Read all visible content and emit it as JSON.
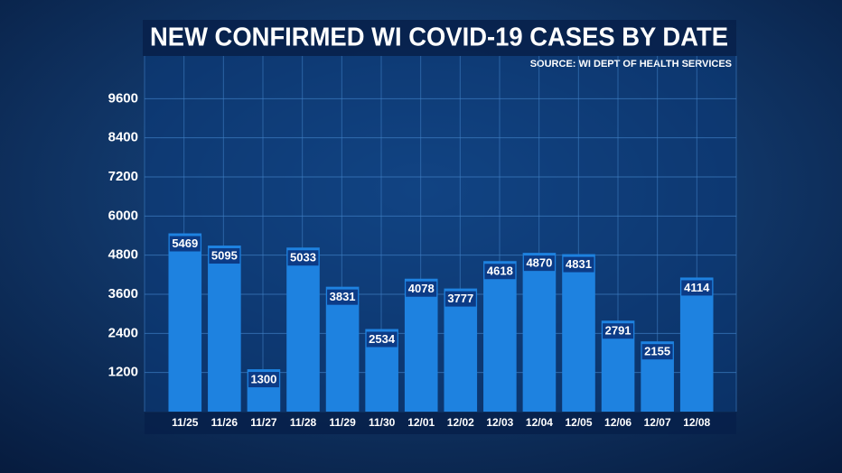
{
  "chart_data": {
    "type": "bar",
    "title": "NEW CONFIRMED WI COVID-19 CASES BY DATE",
    "subtitle": "SOURCE: WI DEPT OF HEALTH SERVICES",
    "categories": [
      "11/25",
      "11/26",
      "11/27",
      "11/28",
      "11/29",
      "11/30",
      "12/01",
      "12/02",
      "12/03",
      "12/04",
      "12/05",
      "12/06",
      "12/07",
      "12/08"
    ],
    "values": [
      5469,
      5095,
      1300,
      5033,
      3831,
      2534,
      4078,
      3777,
      4618,
      4870,
      4831,
      2791,
      2155,
      4114
    ],
    "color": "#1e82e0",
    "ylim": [
      0,
      10800
    ],
    "yticks": [
      1200,
      2400,
      3600,
      4800,
      6000,
      7200,
      8400,
      9600
    ],
    "grid": true
  }
}
